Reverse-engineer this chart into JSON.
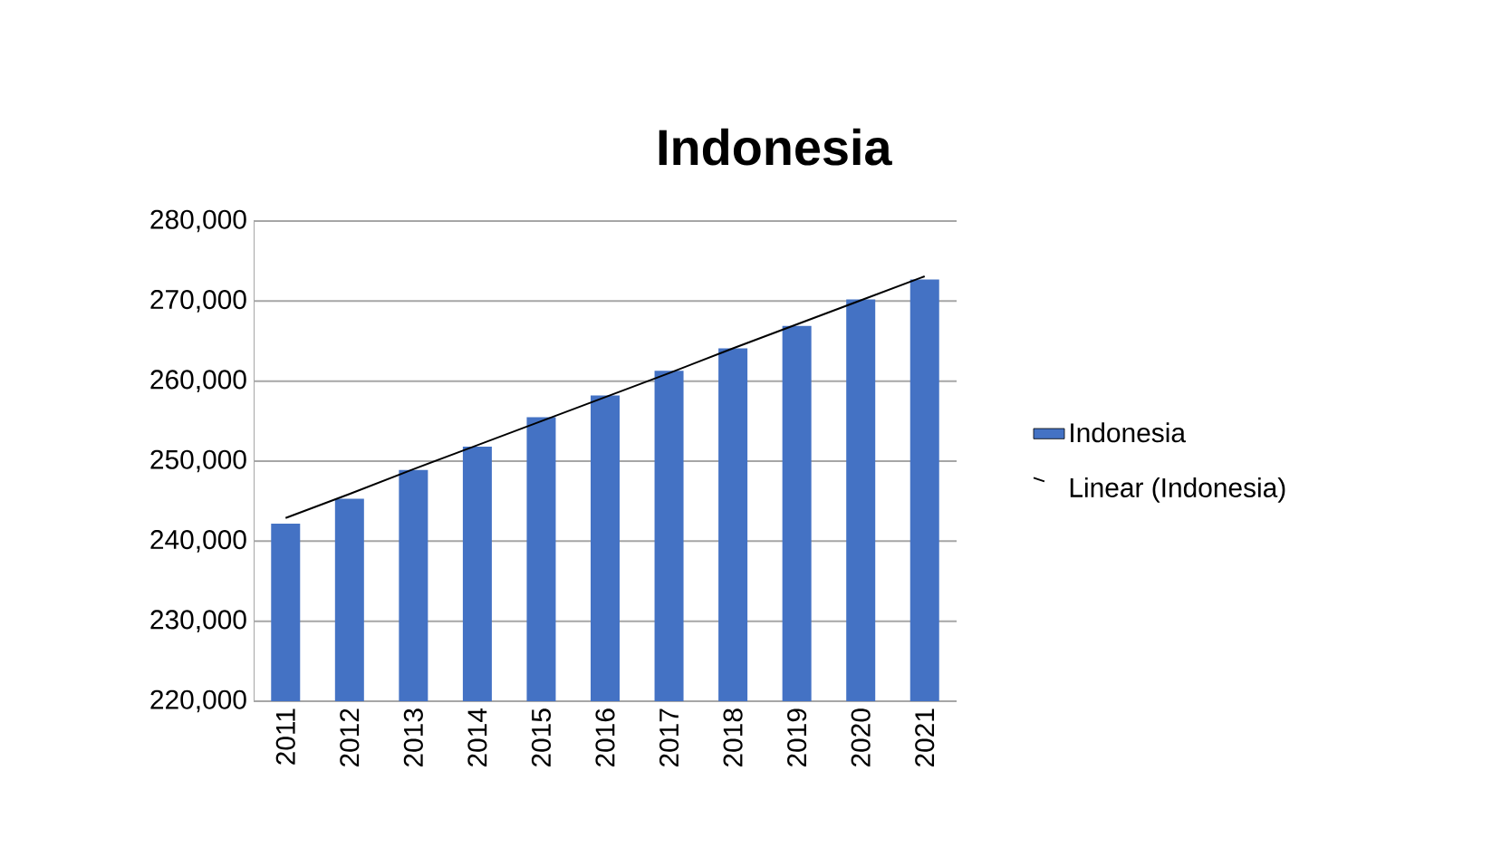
{
  "chart_data": {
    "type": "bar",
    "title": "Indonesia",
    "categories": [
      "2011",
      "2012",
      "2013",
      "2014",
      "2015",
      "2016",
      "2017",
      "2018",
      "2019",
      "2020",
      "2021"
    ],
    "series": [
      {
        "name": "Indonesia",
        "color": "#4472c4",
        "values": [
          242200,
          245300,
          248900,
          251800,
          255500,
          258200,
          261300,
          264100,
          266900,
          270200,
          272700
        ]
      },
      {
        "name": "Linear (Indonesia)",
        "type": "line",
        "color": "#000000",
        "values": [
          242900,
          245900,
          249000,
          252000,
          255000,
          258000,
          261000,
          264100,
          267100,
          270100,
          273100
        ]
      }
    ],
    "ylim": [
      220000,
      280000
    ],
    "yticks": [
      {
        "value": 220000,
        "label": "220,000"
      },
      {
        "value": 230000,
        "label": "230,000"
      },
      {
        "value": 240000,
        "label": "240,000"
      },
      {
        "value": 250000,
        "label": "250,000"
      },
      {
        "value": 260000,
        "label": "260,000"
      },
      {
        "value": 270000,
        "label": "270,000"
      },
      {
        "value": 280000,
        "label": "280,000"
      }
    ],
    "grid": "y",
    "legend": "right"
  }
}
